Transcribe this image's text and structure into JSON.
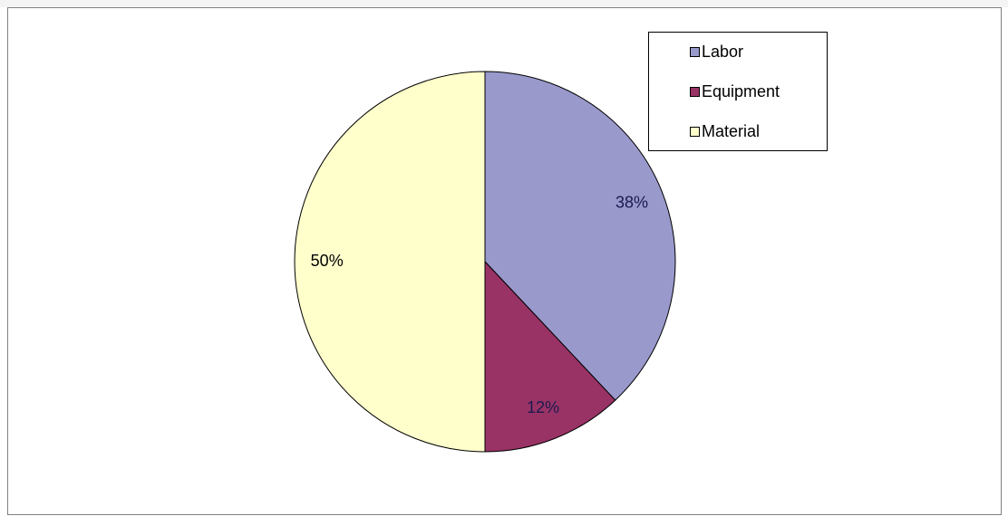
{
  "chart_data": {
    "type": "pie",
    "categories": [
      "Labor",
      "Equipment",
      "Material"
    ],
    "values": [
      38,
      12,
      50
    ],
    "value_labels": [
      "38%",
      "12%",
      "50%"
    ],
    "colors": [
      "#9999cc",
      "#993366",
      "#ffffcc"
    ],
    "legend": "top-right"
  }
}
